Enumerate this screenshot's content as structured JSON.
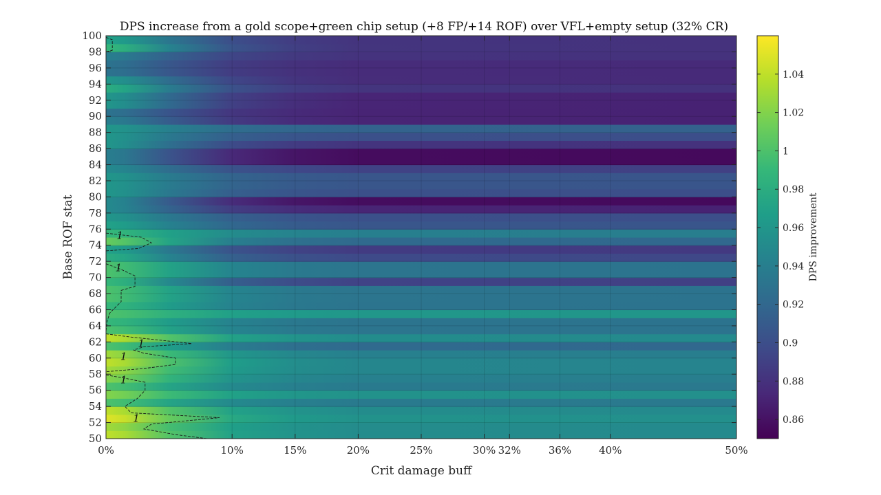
{
  "chart_data": {
    "type": "heatmap",
    "title": "DPS increase from a gold scope+green chip setup (+8 FP/+14 ROF) over VFL+empty setup (32% CR)",
    "xlabel": "Crit damage buff",
    "ylabel": "Base ROF stat",
    "colorbar_label": "DPS improvement",
    "colormap": "viridis",
    "xlim": [
      0,
      50
    ],
    "ylim": [
      50,
      100
    ],
    "clim": [
      0.85,
      1.06
    ],
    "x_ticks": [
      0,
      10,
      15,
      20,
      25,
      30,
      32,
      36,
      40,
      50
    ],
    "x_tick_labels": [
      "0%",
      "10%",
      "15%",
      "20%",
      "25%",
      "30%",
      "32%",
      "36%",
      "40%",
      "50%"
    ],
    "y_ticks": [
      50,
      52,
      54,
      56,
      58,
      60,
      62,
      64,
      66,
      68,
      70,
      72,
      74,
      76,
      78,
      80,
      82,
      84,
      86,
      88,
      90,
      92,
      94,
      96,
      98,
      100
    ],
    "y_tick_labels": [
      "50",
      "52",
      "54",
      "56",
      "58",
      "60",
      "62",
      "64",
      "66",
      "68",
      "70",
      "72",
      "74",
      "76",
      "78",
      "80",
      "82",
      "84",
      "86",
      "88",
      "90",
      "92",
      "94",
      "96",
      "98",
      "100"
    ],
    "colorbar_ticks": [
      0.86,
      0.88,
      0.9,
      0.92,
      0.94,
      0.96,
      0.98,
      1,
      1.02,
      1.04
    ],
    "colorbar_tick_labels": [
      "0.86",
      "0.88",
      "0.9",
      "0.92",
      "0.94",
      "0.96",
      "0.98",
      "1",
      "1.02",
      "1.04"
    ],
    "row_bands": [
      {
        "y": [
          50,
          51
        ],
        "start": 1.04,
        "end": 0.95
      },
      {
        "y": [
          51,
          52
        ],
        "start": 1.03,
        "end": 0.95
      },
      {
        "y": [
          52,
          53
        ],
        "start": 1.05,
        "end": 0.955
      },
      {
        "y": [
          53,
          54
        ],
        "start": 1.04,
        "end": 0.95
      },
      {
        "y": [
          54,
          55
        ],
        "start": 1.0,
        "end": 0.935
      },
      {
        "y": [
          55,
          56
        ],
        "start": 1.02,
        "end": 0.955
      },
      {
        "y": [
          56,
          57
        ],
        "start": 1.0,
        "end": 0.935
      },
      {
        "y": [
          57,
          58
        ],
        "start": 1.02,
        "end": 0.94
      },
      {
        "y": [
          58,
          59
        ],
        "start": 1.03,
        "end": 0.945
      },
      {
        "y": [
          59,
          60
        ],
        "start": 1.04,
        "end": 0.945
      },
      {
        "y": [
          60,
          61
        ],
        "start": 1.03,
        "end": 0.94
      },
      {
        "y": [
          61,
          62
        ],
        "start": 1.0,
        "end": 0.92
      },
      {
        "y": [
          62,
          63
        ],
        "start": 1.04,
        "end": 0.95
      },
      {
        "y": [
          63,
          64
        ],
        "start": 1.0,
        "end": 0.93
      },
      {
        "y": [
          64,
          65
        ],
        "start": 0.99,
        "end": 0.93
      },
      {
        "y": [
          65,
          66
        ],
        "start": 1.0,
        "end": 0.96
      },
      {
        "y": [
          66,
          67
        ],
        "start": 0.99,
        "end": 0.93
      },
      {
        "y": [
          67,
          68
        ],
        "start": 1.0,
        "end": 0.93
      },
      {
        "y": [
          68,
          69
        ],
        "start": 1.0,
        "end": 0.93
      },
      {
        "y": [
          69,
          70
        ],
        "start": 0.99,
        "end": 0.89
      },
      {
        "y": [
          70,
          71
        ],
        "start": 1.0,
        "end": 0.93
      },
      {
        "y": [
          71,
          72
        ],
        "start": 1.0,
        "end": 0.93
      },
      {
        "y": [
          72,
          73
        ],
        "start": 0.98,
        "end": 0.895
      },
      {
        "y": [
          73,
          74
        ],
        "start": 0.97,
        "end": 0.885
      },
      {
        "y": [
          74,
          75
        ],
        "start": 1.01,
        "end": 0.92
      },
      {
        "y": [
          75,
          76
        ],
        "start": 0.99,
        "end": 0.94
      },
      {
        "y": [
          76,
          77
        ],
        "start": 0.97,
        "end": 0.905
      },
      {
        "y": [
          77,
          78
        ],
        "start": 0.96,
        "end": 0.9
      },
      {
        "y": [
          78,
          79
        ],
        "start": 0.95,
        "end": 0.87
      },
      {
        "y": [
          79,
          80
        ],
        "start": 0.95,
        "end": 0.855
      },
      {
        "y": [
          80,
          81
        ],
        "start": 0.96,
        "end": 0.9
      },
      {
        "y": [
          81,
          82
        ],
        "start": 0.96,
        "end": 0.905
      },
      {
        "y": [
          82,
          83
        ],
        "start": 0.96,
        "end": 0.905
      },
      {
        "y": [
          83,
          84
        ],
        "start": 0.95,
        "end": 0.89
      },
      {
        "y": [
          84,
          85
        ],
        "start": 0.94,
        "end": 0.855
      },
      {
        "y": [
          85,
          86
        ],
        "start": 0.94,
        "end": 0.855
      },
      {
        "y": [
          86,
          87
        ],
        "start": 0.96,
        "end": 0.88
      },
      {
        "y": [
          87,
          88
        ],
        "start": 0.96,
        "end": 0.9
      },
      {
        "y": [
          88,
          89
        ],
        "start": 0.96,
        "end": 0.915
      },
      {
        "y": [
          89,
          90
        ],
        "start": 0.94,
        "end": 0.87
      },
      {
        "y": [
          90,
          91
        ],
        "start": 0.93,
        "end": 0.87
      },
      {
        "y": [
          91,
          92
        ],
        "start": 0.96,
        "end": 0.87
      },
      {
        "y": [
          92,
          93
        ],
        "start": 0.96,
        "end": 0.87
      },
      {
        "y": [
          93,
          94
        ],
        "start": 0.98,
        "end": 0.88
      },
      {
        "y": [
          94,
          95
        ],
        "start": 0.96,
        "end": 0.875
      },
      {
        "y": [
          95,
          96
        ],
        "start": 0.93,
        "end": 0.875
      },
      {
        "y": [
          96,
          97
        ],
        "start": 0.93,
        "end": 0.875
      },
      {
        "y": [
          97,
          98
        ],
        "start": 0.94,
        "end": 0.88
      },
      {
        "y": [
          98,
          99
        ],
        "start": 0.99,
        "end": 0.88
      },
      {
        "y": [
          99,
          100
        ],
        "start": 0.97,
        "end": 0.88
      }
    ],
    "contour_level": 1,
    "contour_label": "1",
    "contours": [
      [
        [
          0,
          99.8
        ],
        [
          0.5,
          99.5
        ],
        [
          0.5,
          98.2
        ],
        [
          0,
          98.0
        ]
      ],
      [
        [
          0,
          75.5
        ],
        [
          2.8,
          75.0
        ],
        [
          3.6,
          74.3
        ],
        [
          2.6,
          73.6
        ],
        [
          0,
          73.3
        ]
      ],
      [
        [
          0,
          71.7
        ],
        [
          1.2,
          71.0
        ],
        [
          2.3,
          70.2
        ],
        [
          2.3,
          68.9
        ],
        [
          1.2,
          68.4
        ],
        [
          1.2,
          67.0
        ],
        [
          0.3,
          65.6
        ],
        [
          0.1,
          64.6
        ],
        [
          0,
          63.3
        ]
      ],
      [
        [
          0,
          63.0
        ],
        [
          2.0,
          62.6
        ],
        [
          6.8,
          61.8
        ],
        [
          3.0,
          61.4
        ],
        [
          2.2,
          61.0
        ],
        [
          3.0,
          60.6
        ],
        [
          5.5,
          60.0
        ],
        [
          5.5,
          59.2
        ],
        [
          3.0,
          58.7
        ],
        [
          0,
          58.3
        ]
      ],
      [
        [
          0,
          57.9
        ],
        [
          1.5,
          57.5
        ],
        [
          3.1,
          57.0
        ],
        [
          3.1,
          56.0
        ],
        [
          2.5,
          55.0
        ],
        [
          1.5,
          54.0
        ],
        [
          2.0,
          53.2
        ],
        [
          9.0,
          52.6
        ],
        [
          3.6,
          51.8
        ],
        [
          3.0,
          51.2
        ],
        [
          5.5,
          50.5
        ],
        [
          8.0,
          50.0
        ]
      ]
    ],
    "contour_label_positions": [
      [
        1.1,
        75.2
      ],
      [
        1.0,
        71.2
      ],
      [
        2.8,
        61.8
      ],
      [
        1.4,
        60.2
      ],
      [
        1.4,
        57.3
      ],
      [
        2.4,
        52.5
      ]
    ]
  }
}
